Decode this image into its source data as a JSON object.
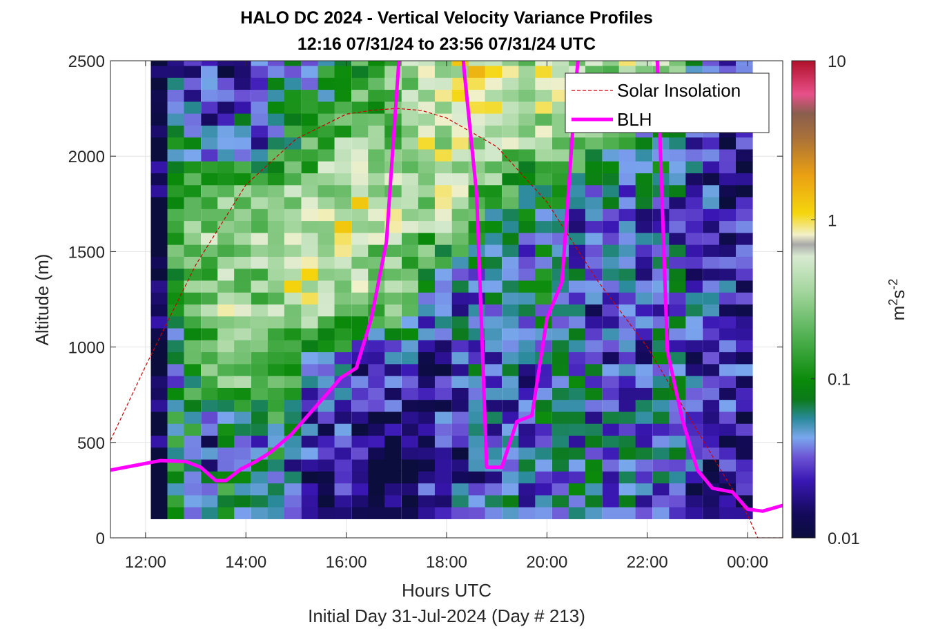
{
  "chart_data": {
    "type": "heatmap",
    "title": "HALO DC 2024 - Vertical Velocity Variance Profiles",
    "subtitle": "12:16 07/31/24 to 23:56 07/31/24  UTC",
    "xlabel": "Hours UTC",
    "xlabel2": "Initial Day 31-Jul-2024 (Day # 213)",
    "ylabel": "Altitude (m)",
    "colorbar_label_base": "m",
    "colorbar_label_sup1": "2",
    "colorbar_label_mid": "s",
    "colorbar_label_sup2": "-2",
    "x_range_hours": [
      11.3,
      24.7
    ],
    "ylim": [
      0,
      2500
    ],
    "x_ticks": [
      12,
      14,
      16,
      18,
      20,
      22,
      24
    ],
    "x_tick_labels": [
      "12:00",
      "14:00",
      "16:00",
      "18:00",
      "20:00",
      "22:00",
      "00:00"
    ],
    "y_ticks": [
      0,
      500,
      1000,
      1500,
      2000,
      2500
    ],
    "y_tick_labels": [
      "0",
      "500",
      "1000",
      "1500",
      "2000",
      "2500"
    ],
    "colorbar": {
      "scale": "log",
      "range": [
        0.01,
        10
      ],
      "ticks": [
        0.01,
        0.1,
        1,
        10
      ],
      "tick_labels": [
        "0.01",
        "0.1",
        "1",
        "10"
      ]
    },
    "grid": true,
    "legend_position": "top-right",
    "legend": [
      "Solar Insolation",
      "BLH"
    ],
    "colors": {
      "blh": "#ff00ff",
      "solar": "#cc0000"
    },
    "time_bins_hours": [
      12.27,
      12.6,
      12.93,
      13.27,
      13.6,
      13.93,
      14.27,
      14.6,
      14.93,
      15.27,
      15.6,
      15.93,
      16.27,
      16.6,
      16.93,
      17.27,
      17.6,
      17.93,
      18.27,
      18.6,
      18.93,
      19.27,
      19.6,
      19.93,
      20.27,
      20.6,
      20.93,
      21.27,
      21.6,
      21.93,
      22.27,
      22.6,
      22.93,
      23.27,
      23.6,
      23.93
    ],
    "profile_log10_variance": [
      [
        -2.0,
        -1.0,
        -1.5,
        -1.2,
        -0.9,
        -1.4,
        -1.3,
        -1.3,
        -1.5,
        -1.7,
        -1.8,
        -1.8,
        -1.9,
        -1.9,
        -1.9,
        -1.9,
        -1.7,
        -1.6,
        -1.5,
        -1.5,
        -1.4,
        -1.3,
        -1.4,
        -1.4,
        -1.5,
        -1.2,
        -1.3,
        -1.4,
        -1.4,
        -1.5,
        -1.4,
        -1.6,
        -1.7,
        -1.8,
        -1.7,
        -1.7
      ],
      [
        -2.0,
        -1.0,
        -1.1,
        -1.6,
        -1.3,
        -1.2,
        -1.5,
        -1.1,
        -1.4,
        -1.7,
        -1.8,
        -1.7,
        -1.8,
        -1.9,
        -2.0,
        -1.9,
        -1.8,
        -1.7,
        -1.7,
        -1.6,
        -1.6,
        -1.5,
        -1.5,
        -1.3,
        -1.3,
        -1.4,
        -1.4,
        -1.4,
        -1.4,
        -1.5,
        -1.3,
        -1.4,
        -1.6,
        -1.6,
        -1.7,
        -1.7
      ],
      [
        -2.0,
        -1.3,
        -1.0,
        -0.8,
        -0.5,
        -0.6,
        -0.6,
        -0.6,
        -0.9,
        -1.2,
        -1.2,
        -1.4,
        -1.6,
        -1.6,
        -1.5,
        -1.7,
        -1.8,
        -1.7,
        -1.5,
        -1.3,
        -1.4,
        -1.4,
        -1.5,
        -1.3,
        -1.2,
        -1.3,
        -1.4,
        -1.6,
        -1.5,
        -1.5,
        -1.2,
        -1.3,
        -1.6,
        -1.7,
        -1.7,
        -1.7
      ],
      [
        -2.0,
        -0.9,
        -0.7,
        -0.6,
        -0.4,
        -0.5,
        -0.6,
        -0.4,
        -0.2,
        -0.2,
        -0.3,
        -0.4,
        -0.4,
        -0.6,
        -0.5,
        -0.8,
        -1.1,
        -1.3,
        -1.4,
        -1.5,
        -1.4,
        -1.5,
        -1.3,
        -1.2,
        -1.3,
        -1.4,
        -1.6,
        -1.5,
        -1.4,
        -1.6,
        -1.5,
        -1.4,
        -1.5,
        -1.5,
        -1.6,
        -1.6
      ],
      [
        -2.0,
        -0.8,
        -0.7,
        -0.5,
        -0.5,
        -0.3,
        -0.4,
        -0.3,
        -0.3,
        -0.3,
        -0.2,
        -0.2,
        -0.2,
        -0.4,
        -0.3,
        -0.4,
        -0.5,
        -0.4,
        -0.5,
        -0.7,
        -1.0,
        -1.0,
        -1.3,
        -1.4,
        -1.3,
        -1.5,
        -1.5,
        -1.4,
        -1.5,
        -1.5,
        -1.4,
        -1.5,
        -1.6,
        -1.6,
        -1.7,
        -1.8
      ],
      [
        -2.0,
        -1.3,
        -1.2,
        -1.6,
        -1.5,
        -1.4,
        -1.5,
        -1.2,
        -1.0,
        -0.9,
        -0.8,
        -0.6,
        -0.5,
        -0.7,
        -0.6,
        -0.4,
        -0.3,
        -0.3,
        -0.3,
        -0.4,
        -0.3,
        -0.4,
        -0.5,
        -0.4,
        -0.4,
        -0.6,
        -0.8,
        -0.9,
        -1.1,
        -1.2,
        -1.1,
        -1.3,
        -1.5,
        -1.6,
        -1.7,
        -1.7
      ],
      [
        -2.0,
        -1.5,
        -1.6,
        -1.7,
        -1.8,
        -1.6,
        -1.7,
        -1.5,
        -1.4,
        -1.3,
        -1.2,
        -1.1,
        -0.9,
        -0.8,
        -0.6,
        -0.5,
        -0.4,
        -0.3,
        -0.2,
        -0.1,
        -0.2,
        -0.3,
        -0.4,
        -0.3,
        -0.3,
        -0.4,
        -0.5,
        -0.4,
        -0.3,
        -0.4,
        -0.4,
        -0.5,
        -0.9,
        -1.3,
        -1.4,
        -1.4
      ]
    ],
    "blh": {
      "x_hours": [
        11.3,
        11.8,
        12.3,
        12.8,
        13.1,
        13.4,
        13.6,
        13.9,
        14.2,
        14.5,
        14.9,
        15.2,
        15.5,
        15.9,
        16.2,
        16.5,
        16.8,
        17.05,
        17.15,
        17.3,
        17.5,
        17.8,
        18.1,
        18.35,
        18.6,
        18.8,
        19.1,
        19.4,
        19.7,
        20.0,
        20.3,
        20.6,
        20.8,
        20.95,
        21.2,
        21.5,
        21.8,
        22.0,
        22.2,
        22.4,
        22.7,
        23.0,
        23.3,
        23.7,
        24.0,
        24.3,
        24.7
      ],
      "y_m": [
        355,
        380,
        405,
        400,
        370,
        300,
        300,
        360,
        400,
        450,
        540,
        630,
        720,
        840,
        890,
        1150,
        1550,
        2500,
        3200,
        3300,
        3300,
        3300,
        3300,
        2450,
        1800,
        370,
        370,
        610,
        640,
        1150,
        1340,
        2450,
        3000,
        3300,
        3300,
        3300,
        3300,
        3300,
        2500,
        980,
        620,
        355,
        260,
        240,
        150,
        140,
        170
      ]
    },
    "solar_insolation": {
      "x_hours": [
        11.3,
        12.0,
        13.0,
        14.0,
        15.0,
        16.0,
        16.5,
        17.0,
        17.5,
        18.0,
        19.0,
        20.0,
        21.0,
        22.0,
        23.0,
        24.0,
        24.2,
        24.7
      ],
      "y_m": [
        510,
        900,
        1430,
        1850,
        2090,
        2220,
        2240,
        2250,
        2240,
        2200,
        2050,
        1760,
        1350,
        1000,
        560,
        120,
        0,
        0
      ]
    }
  }
}
